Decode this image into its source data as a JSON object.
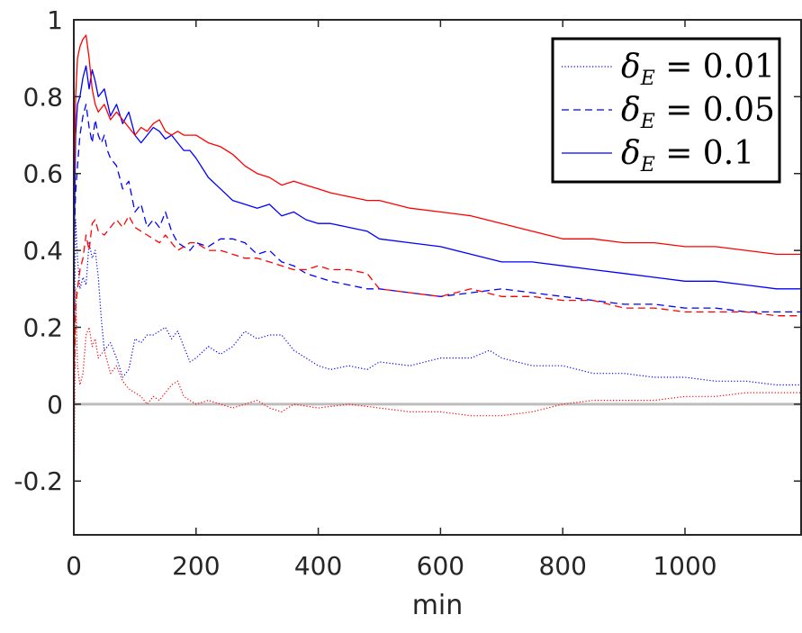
{
  "chart_data": {
    "type": "line",
    "title": "",
    "xlabel": "min",
    "ylabel": "",
    "xlim": [
      0,
      1190
    ],
    "ylim": [
      -0.34,
      1.0
    ],
    "xticks": [
      0,
      200,
      400,
      600,
      800,
      1000
    ],
    "xtick_labels": [
      "0",
      "200",
      "400",
      "600",
      "800",
      "1000"
    ],
    "yticks": [
      -0.2,
      0,
      0.2,
      0.4,
      0.6,
      0.8,
      1
    ],
    "ytick_labels": [
      "-0.2",
      "0",
      "0.2",
      "0.4",
      "0.6",
      "0.8",
      "1"
    ],
    "grid": false,
    "legend_position": "top-right",
    "zero_line": {
      "y": 0,
      "color": "#bdbdbd"
    },
    "legend": [
      {
        "label_symbol": "δ",
        "label_sub": "E",
        "label_rest": " = 0.01",
        "style": "dotted"
      },
      {
        "label_symbol": "δ",
        "label_sub": "E",
        "label_rest": " = 0.05",
        "style": "dashed"
      },
      {
        "label_symbol": "δ",
        "label_sub": "E",
        "label_rest": " = 0.1",
        "style": "solid"
      }
    ],
    "series": [
      {
        "name": "δE = 0.01 (blue)",
        "color": "#0000ff",
        "style": "dotted",
        "x": [
          0,
          3,
          6,
          10,
          15,
          20,
          25,
          30,
          35,
          40,
          45,
          50,
          60,
          70,
          80,
          90,
          100,
          110,
          120,
          130,
          150,
          160,
          170,
          180,
          190,
          200,
          220,
          240,
          260,
          280,
          300,
          320,
          340,
          360,
          380,
          400,
          420,
          450,
          480,
          500,
          550,
          600,
          650,
          680,
          700,
          750,
          800,
          850,
          900,
          950,
          1000,
          1050,
          1100,
          1150,
          1190
        ],
        "y": [
          0.0,
          0.48,
          0.38,
          0.3,
          0.33,
          0.31,
          0.42,
          0.38,
          0.4,
          0.33,
          0.22,
          0.14,
          0.16,
          0.12,
          0.07,
          0.09,
          0.17,
          0.16,
          0.18,
          0.18,
          0.2,
          0.17,
          0.19,
          0.15,
          0.11,
          0.12,
          0.15,
          0.13,
          0.15,
          0.19,
          0.17,
          0.18,
          0.18,
          0.14,
          0.12,
          0.1,
          0.09,
          0.1,
          0.09,
          0.11,
          0.1,
          0.12,
          0.12,
          0.14,
          0.12,
          0.1,
          0.1,
          0.08,
          0.08,
          0.07,
          0.07,
          0.06,
          0.06,
          0.05,
          0.05
        ]
      },
      {
        "name": "δE = 0.01 (red)",
        "color": "#ff0000",
        "style": "dotted",
        "x": [
          0,
          3,
          6,
          10,
          15,
          20,
          25,
          30,
          35,
          40,
          50,
          60,
          70,
          80,
          90,
          100,
          110,
          120,
          130,
          140,
          150,
          160,
          170,
          180,
          200,
          220,
          240,
          260,
          280,
          300,
          320,
          340,
          360,
          400,
          450,
          500,
          550,
          600,
          650,
          700,
          750,
          800,
          850,
          900,
          950,
          1000,
          1050,
          1100,
          1150,
          1190
        ],
        "y": [
          -0.33,
          0.3,
          0.1,
          0.05,
          0.08,
          0.18,
          0.2,
          0.15,
          0.17,
          0.12,
          0.14,
          0.08,
          0.1,
          0.06,
          0.04,
          0.03,
          0.02,
          0.0,
          0.02,
          0.01,
          0.03,
          0.05,
          0.06,
          0.02,
          0.0,
          0.01,
          0.0,
          -0.01,
          0.0,
          0.01,
          -0.01,
          -0.02,
          0.0,
          -0.01,
          0.0,
          -0.01,
          -0.02,
          -0.02,
          -0.03,
          -0.03,
          -0.02,
          0.0,
          0.01,
          0.01,
          0.01,
          0.02,
          0.02,
          0.03,
          0.03,
          0.03
        ]
      },
      {
        "name": "δE = 0.05 (blue)",
        "color": "#0000ff",
        "style": "dashed",
        "x": [
          0,
          3,
          6,
          10,
          15,
          20,
          25,
          30,
          35,
          40,
          45,
          50,
          55,
          60,
          70,
          80,
          90,
          100,
          110,
          120,
          130,
          140,
          150,
          160,
          170,
          180,
          190,
          200,
          220,
          240,
          260,
          280,
          300,
          320,
          340,
          360,
          380,
          400,
          420,
          450,
          480,
          500,
          550,
          600,
          650,
          700,
          750,
          800,
          850,
          900,
          950,
          1000,
          1050,
          1100,
          1150,
          1190
        ],
        "y": [
          0.4,
          0.55,
          0.62,
          0.7,
          0.75,
          0.78,
          0.72,
          0.68,
          0.74,
          0.7,
          0.68,
          0.7,
          0.66,
          0.64,
          0.62,
          0.56,
          0.58,
          0.5,
          0.52,
          0.46,
          0.48,
          0.46,
          0.5,
          0.45,
          0.42,
          0.41,
          0.4,
          0.42,
          0.41,
          0.43,
          0.43,
          0.42,
          0.39,
          0.4,
          0.37,
          0.36,
          0.34,
          0.33,
          0.32,
          0.31,
          0.3,
          0.3,
          0.29,
          0.28,
          0.29,
          0.3,
          0.29,
          0.28,
          0.27,
          0.26,
          0.26,
          0.25,
          0.25,
          0.24,
          0.24,
          0.24
        ]
      },
      {
        "name": "δE = 0.05 (red)",
        "color": "#ff0000",
        "style": "dashed",
        "x": [
          0,
          3,
          6,
          10,
          15,
          20,
          25,
          30,
          35,
          40,
          50,
          60,
          70,
          80,
          90,
          100,
          110,
          120,
          130,
          140,
          150,
          160,
          170,
          180,
          190,
          200,
          220,
          240,
          260,
          280,
          300,
          320,
          340,
          360,
          380,
          400,
          420,
          450,
          480,
          500,
          550,
          600,
          650,
          700,
          750,
          800,
          850,
          900,
          950,
          1000,
          1050,
          1100,
          1150,
          1190
        ],
        "y": [
          0.0,
          0.25,
          0.3,
          0.35,
          0.38,
          0.44,
          0.4,
          0.47,
          0.48,
          0.45,
          0.44,
          0.46,
          0.48,
          0.46,
          0.49,
          0.46,
          0.45,
          0.44,
          0.43,
          0.42,
          0.44,
          0.42,
          0.4,
          0.41,
          0.42,
          0.42,
          0.4,
          0.4,
          0.39,
          0.38,
          0.38,
          0.37,
          0.36,
          0.35,
          0.35,
          0.36,
          0.35,
          0.35,
          0.34,
          0.3,
          0.29,
          0.28,
          0.3,
          0.28,
          0.28,
          0.27,
          0.27,
          0.25,
          0.25,
          0.24,
          0.24,
          0.24,
          0.23,
          0.23
        ]
      },
      {
        "name": "δE = 0.1 (blue)",
        "color": "#0000ff",
        "style": "solid",
        "x": [
          0,
          3,
          6,
          10,
          15,
          20,
          25,
          30,
          35,
          40,
          50,
          60,
          70,
          80,
          90,
          100,
          110,
          120,
          130,
          140,
          150,
          160,
          170,
          180,
          190,
          200,
          220,
          240,
          260,
          280,
          300,
          320,
          340,
          360,
          380,
          400,
          420,
          450,
          480,
          500,
          550,
          600,
          650,
          700,
          750,
          800,
          850,
          900,
          950,
          1000,
          1050,
          1100,
          1150,
          1190
        ],
        "y": [
          0.35,
          0.7,
          0.78,
          0.8,
          0.85,
          0.88,
          0.82,
          0.87,
          0.84,
          0.8,
          0.82,
          0.75,
          0.78,
          0.73,
          0.76,
          0.7,
          0.68,
          0.7,
          0.72,
          0.71,
          0.69,
          0.7,
          0.68,
          0.66,
          0.66,
          0.64,
          0.59,
          0.56,
          0.53,
          0.52,
          0.51,
          0.52,
          0.49,
          0.5,
          0.48,
          0.47,
          0.47,
          0.46,
          0.45,
          0.43,
          0.42,
          0.41,
          0.39,
          0.37,
          0.37,
          0.36,
          0.35,
          0.34,
          0.33,
          0.32,
          0.32,
          0.31,
          0.3,
          0.3
        ]
      },
      {
        "name": "δE = 0.1 (red)",
        "color": "#ff0000",
        "style": "solid",
        "x": [
          0,
          3,
          6,
          10,
          15,
          20,
          25,
          30,
          35,
          40,
          50,
          60,
          70,
          80,
          90,
          100,
          110,
          120,
          130,
          140,
          150,
          160,
          170,
          180,
          190,
          200,
          220,
          240,
          260,
          280,
          300,
          320,
          340,
          360,
          380,
          400,
          420,
          450,
          480,
          500,
          550,
          600,
          650,
          700,
          750,
          800,
          850,
          900,
          950,
          1000,
          1050,
          1100,
          1150,
          1190
        ],
        "y": [
          0.5,
          0.8,
          0.9,
          0.93,
          0.95,
          0.96,
          0.9,
          0.82,
          0.78,
          0.76,
          0.78,
          0.74,
          0.76,
          0.74,
          0.72,
          0.7,
          0.72,
          0.71,
          0.73,
          0.74,
          0.71,
          0.7,
          0.71,
          0.7,
          0.7,
          0.7,
          0.68,
          0.67,
          0.65,
          0.62,
          0.6,
          0.59,
          0.57,
          0.58,
          0.57,
          0.56,
          0.55,
          0.54,
          0.53,
          0.53,
          0.51,
          0.5,
          0.49,
          0.47,
          0.45,
          0.43,
          0.43,
          0.42,
          0.42,
          0.41,
          0.41,
          0.4,
          0.39,
          0.39
        ]
      }
    ]
  }
}
